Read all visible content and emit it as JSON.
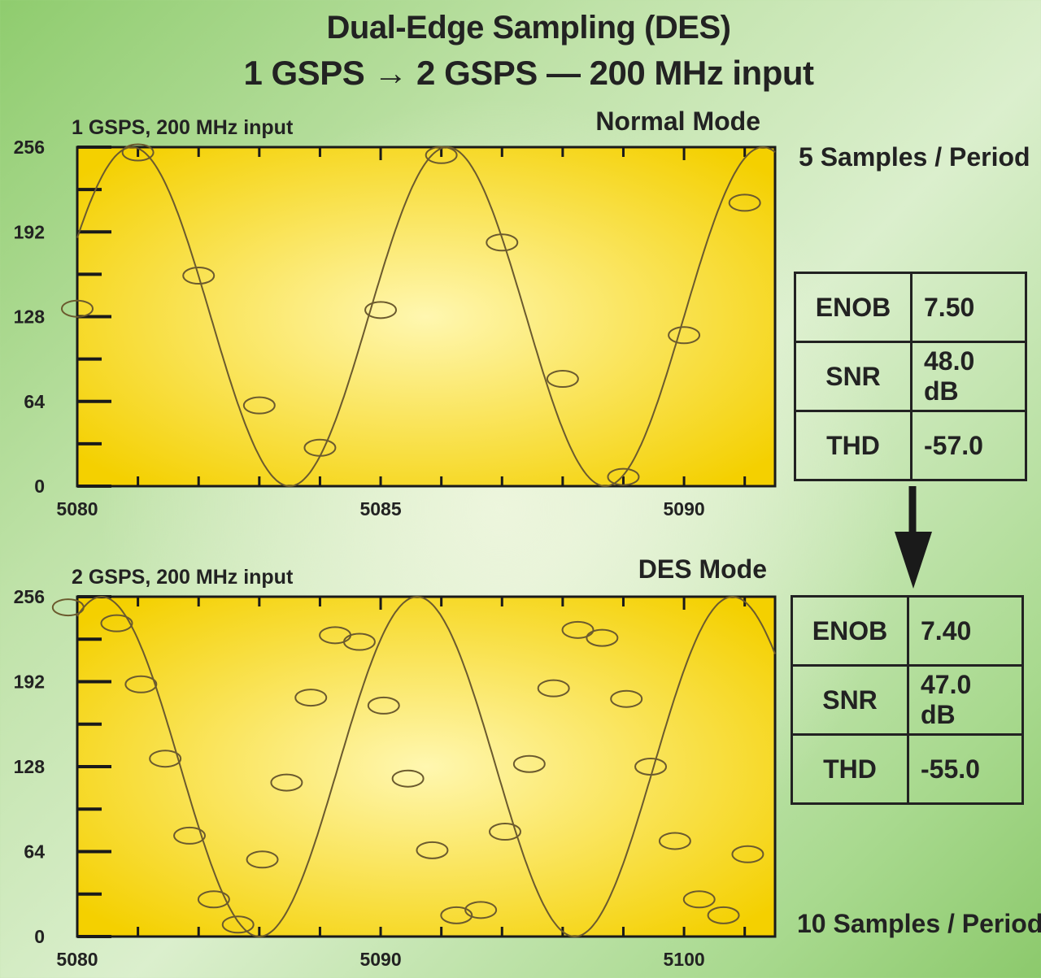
{
  "header": {
    "title_line1": "Dual-Edge Sampling (DES)",
    "title_line2": "1 GSPS → 2 GSPS — 200 MHz input"
  },
  "colors": {
    "plot_bg_edge": "#f4d000",
    "plot_bg_center": "#fff7b0",
    "wave": "#6b5a2e",
    "axis": "#1a1a1a"
  },
  "chart_data": [
    {
      "type": "line",
      "subtitle": "1 GSPS, 200 MHz input",
      "mode_label": "Normal Mode",
      "side_label": "5 Samples / Period",
      "xlim": [
        5080,
        5091.5
      ],
      "ylim": [
        0,
        256
      ],
      "x_ticks": [
        5080,
        5085,
        5090
      ],
      "y_ticks": [
        0,
        64,
        128,
        192,
        256
      ],
      "curve": {
        "amplitude": 128,
        "offset": 128,
        "period": 5.2,
        "peak_x": 5080.9
      },
      "samples": {
        "x": [
          5080,
          5081,
          5082,
          5083,
          5084,
          5085,
          5086,
          5087,
          5088,
          5089,
          5090,
          5091
        ],
        "y": [
          134,
          252,
          159,
          61,
          29,
          133,
          250,
          184,
          81,
          7,
          114,
          214
        ]
      }
    },
    {
      "type": "line",
      "subtitle": "2 GSPS, 200 MHz input",
      "mode_label": "DES Mode",
      "side_label": "10 Samples / Period",
      "xlim": [
        5080,
        5103
      ],
      "ylim": [
        0,
        256
      ],
      "x_ticks": [
        5080,
        5090,
        5100
      ],
      "y_ticks": [
        0,
        64,
        128,
        192,
        256
      ],
      "curve": {
        "amplitude": 128,
        "offset": 128,
        "period": 10.4,
        "peak_x": 5080.8
      },
      "samples": {
        "x": [
          5079.7,
          5081.3,
          5082.1,
          5082.9,
          5083.7,
          5084.5,
          5085.3,
          5086.1,
          5086.9,
          5087.7,
          5088.5,
          5089.3,
          5090.1,
          5090.9,
          5091.7,
          5092.5,
          5093.3,
          5094.1,
          5094.9,
          5095.7,
          5096.5,
          5097.3,
          5098.1,
          5098.9,
          5099.7,
          5100.5,
          5101.3,
          5102.1
        ],
        "y": [
          248,
          236,
          190,
          134,
          76,
          28,
          9,
          58,
          116,
          180,
          227,
          222,
          174,
          119,
          65,
          16,
          20,
          79,
          130,
          187,
          231,
          225,
          179,
          128,
          72,
          28,
          16,
          62
        ]
      }
    }
  ],
  "metrics": [
    {
      "rows": [
        {
          "name": "ENOB",
          "value": "7.50"
        },
        {
          "name": "SNR",
          "value": "48.0 dB"
        },
        {
          "name": "THD",
          "value": "-57.0"
        }
      ]
    },
    {
      "rows": [
        {
          "name": "ENOB",
          "value": "7.40"
        },
        {
          "name": "SNR",
          "value": "47.0 dB"
        },
        {
          "name": "THD",
          "value": "-55.0"
        }
      ]
    }
  ]
}
